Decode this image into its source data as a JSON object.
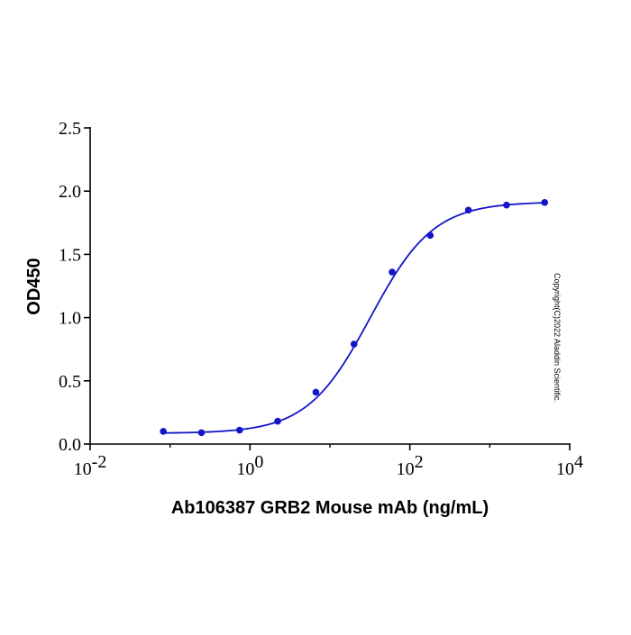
{
  "chart_data": {
    "type": "scatter",
    "x_scale": "log",
    "xlabel": "Ab106387 GRB2 Mouse mAb (ng/mL)",
    "ylabel": "OD450",
    "xlim": [
      0.01,
      10000
    ],
    "ylim": [
      0,
      2.5
    ],
    "x_ticks": [
      {
        "base": "10",
        "exp": "-2"
      },
      {
        "base": "10",
        "exp": "0"
      },
      {
        "base": "10",
        "exp": "2"
      },
      {
        "base": "10",
        "exp": "4"
      }
    ],
    "x_tick_values": [
      0.01,
      1,
      100,
      10000
    ],
    "y_ticks": [
      "0.0",
      "0.5",
      "1.0",
      "1.5",
      "2.0",
      "2.5"
    ],
    "y_tick_values": [
      0,
      0.5,
      1.0,
      1.5,
      2.0,
      2.5
    ],
    "grid": false,
    "series": [
      {
        "points": [
          {
            "x": 0.0823,
            "y": 0.1
          },
          {
            "x": 0.247,
            "y": 0.09
          },
          {
            "x": 0.741,
            "y": 0.11
          },
          {
            "x": 2.22,
            "y": 0.18
          },
          {
            "x": 6.67,
            "y": 0.41
          },
          {
            "x": 20,
            "y": 0.79
          },
          {
            "x": 60,
            "y": 1.36
          },
          {
            "x": 180,
            "y": 1.65
          },
          {
            "x": 540,
            "y": 1.85
          },
          {
            "x": 1620,
            "y": 1.89
          },
          {
            "x": 4860,
            "y": 1.91
          }
        ],
        "fit": {
          "bottom": 0.085,
          "top": 1.915,
          "ec50": 32,
          "hill": 1.1
        },
        "color": "#1515c8"
      }
    ],
    "annotations": [
      "Copyright(C)2022 Aladdin Scientific."
    ]
  }
}
